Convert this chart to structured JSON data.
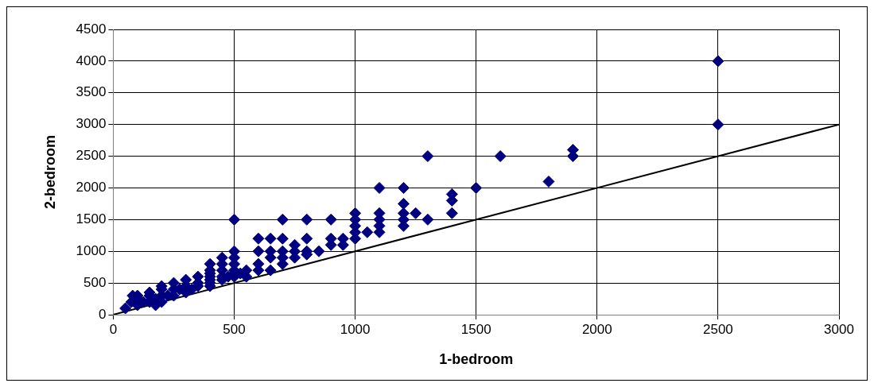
{
  "chart_data": {
    "type": "scatter",
    "xlabel": "1-bedroom",
    "ylabel": "2-bedroom",
    "xlim": [
      0,
      3000
    ],
    "ylim": [
      0,
      4500
    ],
    "xticks": [
      0,
      500,
      1000,
      1500,
      2000,
      2500,
      3000
    ],
    "yticks": [
      0,
      500,
      1000,
      1500,
      2000,
      2500,
      3000,
      3500,
      4000,
      4500
    ],
    "grid": true,
    "legend": false,
    "series": [
      {
        "color": "#000080",
        "marker": "diamond",
        "x": [
          50,
          75,
          80,
          100,
          100,
          100,
          125,
          150,
          150,
          150,
          175,
          175,
          200,
          200,
          200,
          200,
          225,
          250,
          250,
          250,
          275,
          300,
          300,
          300,
          325,
          350,
          350,
          350,
          400,
          400,
          400,
          400,
          400,
          400,
          400,
          450,
          450,
          450,
          450,
          450,
          475,
          500,
          500,
          500,
          500,
          500,
          500,
          500,
          525,
          550,
          550,
          600,
          600,
          600,
          600,
          650,
          650,
          650,
          650,
          700,
          700,
          700,
          700,
          700,
          750,
          750,
          750,
          800,
          800,
          800,
          800,
          850,
          900,
          900,
          900,
          950,
          950,
          1000,
          1000,
          1000,
          1000,
          1000,
          1050,
          1100,
          1100,
          1100,
          1100,
          1100,
          1200,
          1200,
          1200,
          1200,
          1200,
          1250,
          1300,
          1300,
          1400,
          1400,
          1400,
          1500,
          1600,
          1800,
          1900,
          1900,
          2500,
          2500
        ],
        "values": [
          100,
          200,
          300,
          150,
          250,
          300,
          200,
          200,
          300,
          350,
          150,
          250,
          200,
          300,
          400,
          450,
          300,
          300,
          400,
          500,
          400,
          350,
          450,
          550,
          400,
          450,
          500,
          600,
          450,
          500,
          550,
          600,
          650,
          700,
          800,
          550,
          600,
          700,
          800,
          900,
          600,
          600,
          650,
          700,
          800,
          900,
          1000,
          1500,
          650,
          600,
          700,
          700,
          800,
          1000,
          1200,
          700,
          900,
          1000,
          1200,
          800,
          900,
          1000,
          1200,
          1500,
          900,
          1000,
          1100,
          950,
          1000,
          1200,
          1500,
          1000,
          1100,
          1200,
          1500,
          1100,
          1200,
          1200,
          1300,
          1400,
          1500,
          1600,
          1300,
          1300,
          1400,
          1500,
          1600,
          2000,
          1400,
          1500,
          1600,
          1750,
          2000,
          1600,
          1500,
          2500,
          1600,
          1800,
          1900,
          2000,
          2500,
          2100,
          2500,
          2600,
          3000,
          4000
        ]
      },
      {
        "type": "line",
        "color": "#000000",
        "marker": "none",
        "line_style": "solid",
        "x": [
          0,
          3000
        ],
        "values": [
          0,
          3000
        ]
      }
    ]
  }
}
